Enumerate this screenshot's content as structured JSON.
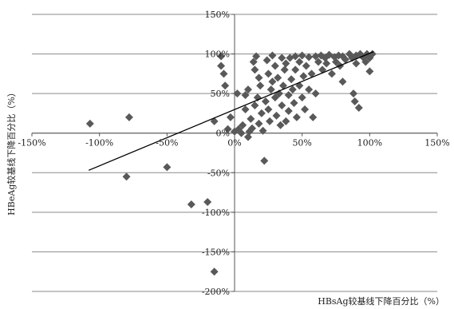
{
  "chart_data": {
    "type": "scatter",
    "xlabel": "HBsAg较基线下降百分比（%）",
    "ylabel": "HBeAg较基线下降百分比（%）",
    "xlim": [
      -150,
      150
    ],
    "ylim": [
      -200,
      150
    ],
    "x_ticks": [
      -150,
      -100,
      -50,
      0,
      50,
      100,
      150
    ],
    "y_ticks": [
      -200,
      -150,
      -100,
      -50,
      0,
      50,
      100,
      150
    ],
    "x_tick_labels": [
      "-150%",
      "-100%",
      "-50%",
      "0%",
      "50%",
      "100%",
      "150%"
    ],
    "y_tick_labels": [
      "-200%",
      "-150%",
      "-100%",
      "-50%",
      "0%",
      "50%",
      "100%",
      "150%"
    ],
    "grid": true,
    "marker": "diamond",
    "marker_color": "#595959",
    "trendline": {
      "x": [
        -108,
        103
      ],
      "y": [
        -47,
        103
      ]
    },
    "points": [
      {
        "x": -107,
        "y": 12
      },
      {
        "x": -78,
        "y": 20
      },
      {
        "x": -80,
        "y": -55
      },
      {
        "x": -50,
        "y": -43
      },
      {
        "x": -32,
        "y": -90
      },
      {
        "x": -20,
        "y": -87
      },
      {
        "x": -15,
        "y": -175
      },
      {
        "x": -15,
        "y": 15
      },
      {
        "x": -10,
        "y": 97
      },
      {
        "x": -10,
        "y": 85
      },
      {
        "x": -8,
        "y": 75
      },
      {
        "x": -7,
        "y": 60
      },
      {
        "x": -5,
        "y": 5
      },
      {
        "x": -3,
        "y": 20
      },
      {
        "x": 0,
        "y": 2
      },
      {
        "x": 2,
        "y": 50
      },
      {
        "x": 3,
        "y": 5
      },
      {
        "x": 5,
        "y": 0
      },
      {
        "x": 6,
        "y": 10
      },
      {
        "x": 8,
        "y": 48
      },
      {
        "x": 8,
        "y": 30
      },
      {
        "x": 10,
        "y": 55
      },
      {
        "x": 10,
        "y": -5
      },
      {
        "x": 11,
        "y": 2
      },
      {
        "x": 12,
        "y": 18
      },
      {
        "x": 13,
        "y": 6
      },
      {
        "x": 14,
        "y": 90
      },
      {
        "x": 15,
        "y": 80
      },
      {
        "x": 15,
        "y": 35
      },
      {
        "x": 16,
        "y": 97
      },
      {
        "x": 17,
        "y": 45
      },
      {
        "x": 18,
        "y": 70
      },
      {
        "x": 18,
        "y": 12
      },
      {
        "x": 19,
        "y": 60
      },
      {
        "x": 20,
        "y": 25
      },
      {
        "x": 21,
        "y": 3
      },
      {
        "x": 22,
        "y": -35
      },
      {
        "x": 23,
        "y": 40
      },
      {
        "x": 24,
        "y": 92
      },
      {
        "x": 25,
        "y": 75
      },
      {
        "x": 25,
        "y": 30
      },
      {
        "x": 26,
        "y": 15
      },
      {
        "x": 27,
        "y": 55
      },
      {
        "x": 28,
        "y": 98
      },
      {
        "x": 28,
        "y": 65
      },
      {
        "x": 30,
        "y": 45
      },
      {
        "x": 30,
        "y": 85
      },
      {
        "x": 31,
        "y": 22
      },
      {
        "x": 32,
        "y": 70
      },
      {
        "x": 33,
        "y": 50
      },
      {
        "x": 34,
        "y": 10
      },
      {
        "x": 35,
        "y": 95
      },
      {
        "x": 35,
        "y": 35
      },
      {
        "x": 36,
        "y": 60
      },
      {
        "x": 37,
        "y": 80
      },
      {
        "x": 38,
        "y": 15
      },
      {
        "x": 38,
        "y": 88
      },
      {
        "x": 40,
        "y": 48
      },
      {
        "x": 40,
        "y": 28
      },
      {
        "x": 41,
        "y": 95
      },
      {
        "x": 42,
        "y": 68
      },
      {
        "x": 43,
        "y": 55
      },
      {
        "x": 44,
        "y": 38
      },
      {
        "x": 45,
        "y": 97
      },
      {
        "x": 45,
        "y": 80
      },
      {
        "x": 46,
        "y": 20
      },
      {
        "x": 48,
        "y": 60
      },
      {
        "x": 48,
        "y": 90
      },
      {
        "x": 50,
        "y": 98
      },
      {
        "x": 50,
        "y": 45
      },
      {
        "x": 51,
        "y": 72
      },
      {
        "x": 52,
        "y": 30
      },
      {
        "x": 53,
        "y": 85
      },
      {
        "x": 55,
        "y": 96
      },
      {
        "x": 55,
        "y": 55
      },
      {
        "x": 57,
        "y": 75
      },
      {
        "x": 58,
        "y": 20
      },
      {
        "x": 60,
        "y": 97
      },
      {
        "x": 60,
        "y": 50
      },
      {
        "x": 62,
        "y": 90
      },
      {
        "x": 64,
        "y": 98
      },
      {
        "x": 65,
        "y": 80
      },
      {
        "x": 67,
        "y": 95
      },
      {
        "x": 68,
        "y": 88
      },
      {
        "x": 70,
        "y": 99
      },
      {
        "x": 72,
        "y": 75
      },
      {
        "x": 74,
        "y": 96
      },
      {
        "x": 75,
        "y": 90
      },
      {
        "x": 77,
        "y": 98
      },
      {
        "x": 78,
        "y": 85
      },
      {
        "x": 80,
        "y": 97
      },
      {
        "x": 80,
        "y": 65
      },
      {
        "x": 82,
        "y": 93
      },
      {
        "x": 85,
        "y": 100
      },
      {
        "x": 87,
        "y": 95
      },
      {
        "x": 88,
        "y": 50
      },
      {
        "x": 89,
        "y": 40
      },
      {
        "x": 90,
        "y": 98
      },
      {
        "x": 90,
        "y": 88
      },
      {
        "x": 92,
        "y": 32
      },
      {
        "x": 93,
        "y": 100
      },
      {
        "x": 95,
        "y": 96
      },
      {
        "x": 97,
        "y": 90
      },
      {
        "x": 98,
        "y": 100
      },
      {
        "x": 100,
        "y": 78
      },
      {
        "x": 100,
        "y": 95
      },
      {
        "x": 102,
        "y": 100
      }
    ]
  }
}
